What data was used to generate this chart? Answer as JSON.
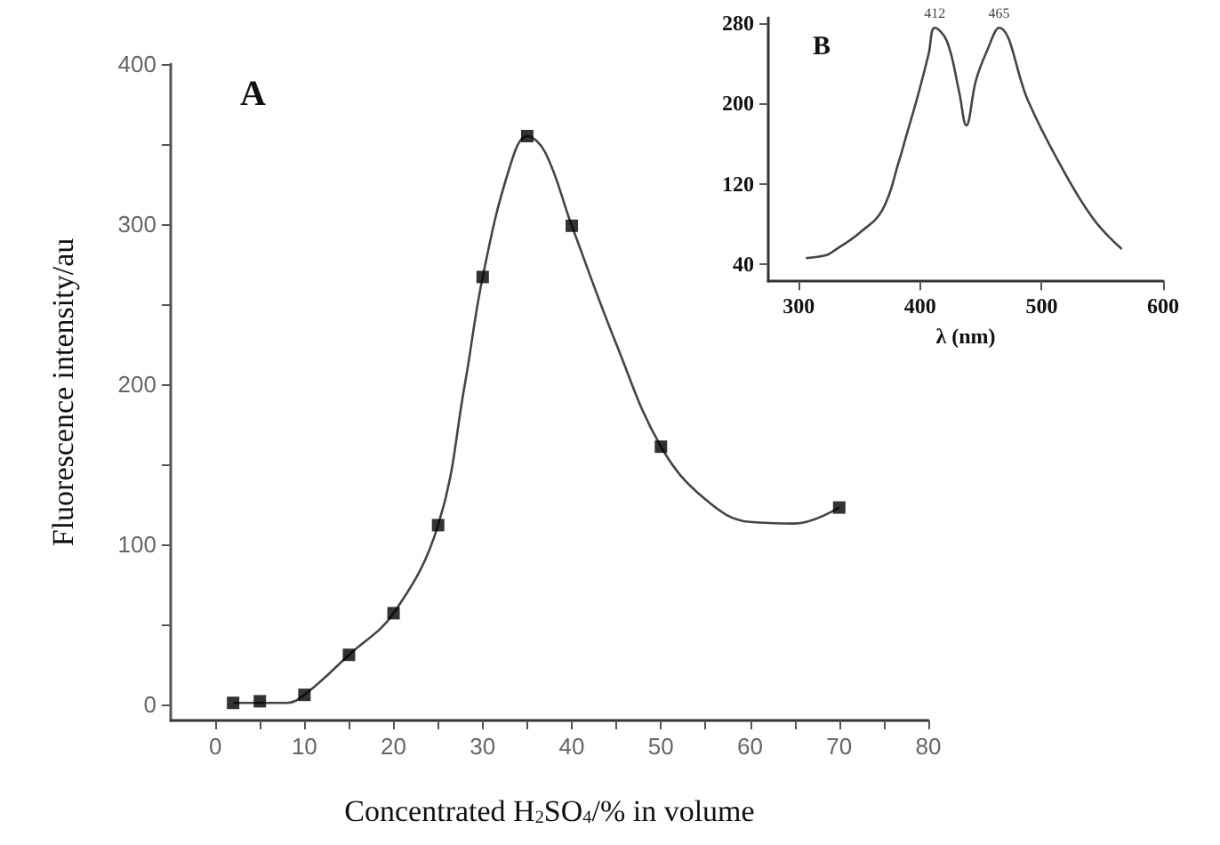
{
  "chart_data": [
    {
      "type": "scatter",
      "title": "A",
      "xlabel": "Concentrated H$_{2}$SO$_{4}$/% in volume",
      "ylabel": "Fluorescence intensity/au",
      "series": [
        {
          "color": "#000000",
          "marker": "square",
          "x": [
            2,
            5,
            10,
            15,
            20,
            25,
            30,
            35,
            40,
            50,
            70
          ],
          "values": [
            1,
            2,
            6,
            31,
            57,
            112,
            267,
            355,
            299,
            161,
            123
          ]
        },
        {
          "type": "line",
          "color": "#444444",
          "marker": "none",
          "x": [
            2,
            5,
            8,
            10,
            15,
            20,
            25,
            28,
            30,
            33,
            35,
            37,
            40,
            45,
            50,
            55,
            60,
            65,
            70
          ],
          "values": [
            1,
            1,
            1,
            6,
            31,
            57,
            112,
            200,
            267,
            335,
            355,
            345,
            299,
            225,
            161,
            128,
            114,
            113,
            123
          ]
        }
      ],
      "xlim": [
        -5,
        80
      ],
      "xticks": [
        0,
        {
          "value": 5,
          "label": null
        },
        10,
        {
          "value": 15,
          "label": null
        },
        20,
        {
          "value": 25,
          "label": null
        },
        30,
        {
          "value": 35,
          "label": null
        },
        40,
        {
          "value": 45,
          "label": null
        },
        50,
        {
          "value": 55,
          "label": null
        },
        60,
        {
          "value": 65,
          "label": null
        },
        70,
        {
          "value": 75,
          "label": null
        },
        80
      ],
      "ylim": [
        -10,
        400
      ],
      "yticks": [
        0,
        {
          "value": 50,
          "label": null
        },
        100,
        {
          "value": 150,
          "label": null
        },
        200,
        {
          "value": 250,
          "label": null
        },
        300,
        {
          "value": 350,
          "label": null
        },
        400
      ]
    },
    {
      "type": "line",
      "title": "B",
      "xlabel": "λ (nm)",
      "series": [
        {
          "color": "#444444",
          "x": [
            306,
            323,
            330,
            350,
            369,
            383,
            388,
            398,
            407,
            412,
            422,
            432,
            438,
            446,
            455,
            465,
            489,
            513,
            542,
            566
          ],
          "values": [
            46,
            49,
            54,
            71,
            94,
            144,
            165,
            207,
            249,
            275,
            262,
            212,
            178,
            223,
            252,
            275,
            202,
            144,
            86,
            55
          ]
        }
      ],
      "annotations": [
        {
          "text": "412",
          "x": 412,
          "y": 275
        },
        {
          "text": "465",
          "x": 465,
          "y": 275
        }
      ],
      "xlim": [
        275,
        600
      ],
      "xticks": [
        300,
        400,
        500,
        600
      ],
      "ylim": [
        23,
        285
      ],
      "yticks": [
        40,
        120,
        200,
        280
      ]
    }
  ]
}
